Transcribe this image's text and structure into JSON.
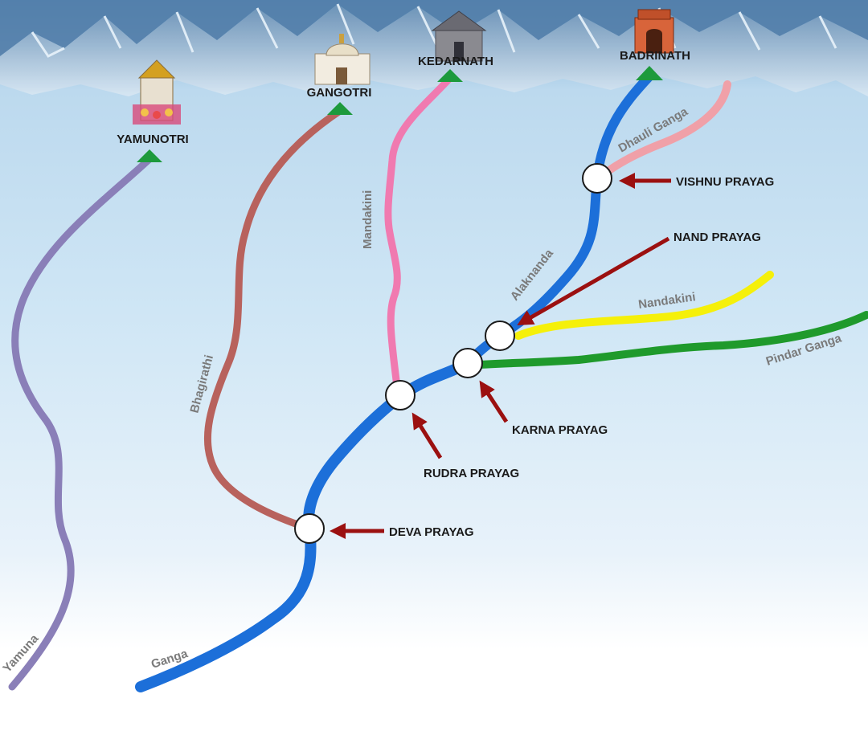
{
  "shrines": [
    {
      "id": "yamunotri",
      "label": "YAMUNOTRI"
    },
    {
      "id": "gangotri",
      "label": "GANGOTRI"
    },
    {
      "id": "kedarnath",
      "label": "KEDARNATH"
    },
    {
      "id": "badrinath",
      "label": "BADRINATH"
    }
  ],
  "rivers": [
    {
      "id": "yamuna",
      "label": "Yamuna",
      "color": "#8a7fb8"
    },
    {
      "id": "bhagirathi",
      "label": "Bhagirathi",
      "color": "#b8625d"
    },
    {
      "id": "mandakini",
      "label": "Mandakini",
      "color": "#f07ab0"
    },
    {
      "id": "alaknanda",
      "label": "Alaknanda",
      "color": "#1c6fd9"
    },
    {
      "id": "ganga",
      "label": "Ganga",
      "color": "#1c6fd9"
    },
    {
      "id": "dhauli-ganga",
      "label": "Dhauli Ganga",
      "color": "#f0a0a8"
    },
    {
      "id": "nandakini",
      "label": "Nandakini",
      "color": "#f5f00a"
    },
    {
      "id": "pindar-ganga",
      "label": "Pindar Ganga",
      "color": "#1f9a2c"
    }
  ],
  "confluences": [
    {
      "id": "vishnu",
      "label": "VISHNU PRAYAG"
    },
    {
      "id": "nand",
      "label": "NAND PRAYAG"
    },
    {
      "id": "karna",
      "label": "KARNA PRAYAG"
    },
    {
      "id": "rudra",
      "label": "RUDRA PRAYAG"
    },
    {
      "id": "deva",
      "label": "DEVA PRAYAG"
    }
  ],
  "colors": {
    "arrow": "#9b1010",
    "triangle": "#1d9a3c",
    "sky_top": "#7fb3d6",
    "sky_bottom": "#ffffff"
  }
}
